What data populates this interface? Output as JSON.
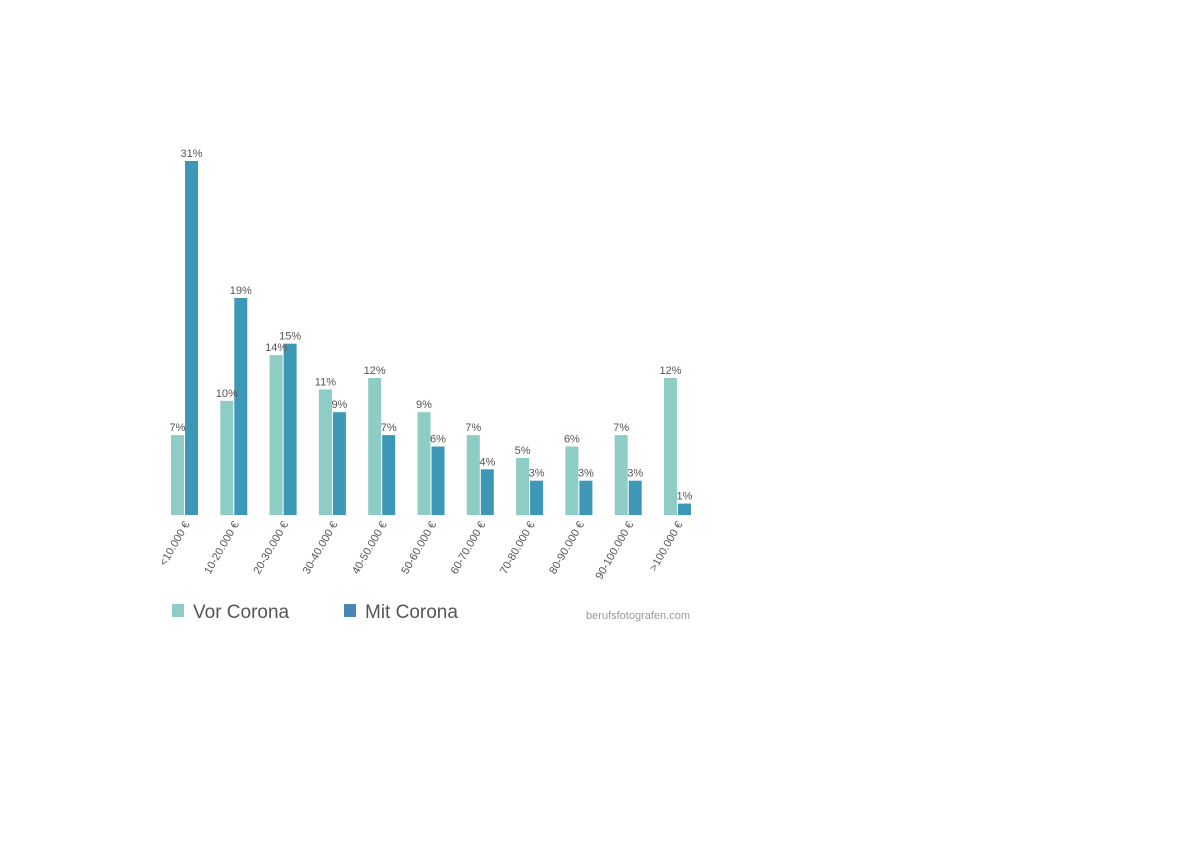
{
  "chart_data": {
    "type": "bar",
    "categories": [
      "<10.000 €",
      "10-20.000 €",
      "20-30.000 €",
      "30-40.000 €",
      "40-50.000 €",
      "50-60.000 €",
      "60-70.000 €",
      "70-80.000 €",
      "80-90.000 €",
      "90-100.000 €",
      ">100.000 €"
    ],
    "series": [
      {
        "name": "Vor Corona",
        "color": "#8ecdc6",
        "values": [
          7,
          10,
          14,
          11,
          12,
          9,
          7,
          5,
          6,
          7,
          12
        ],
        "labels": [
          "7%",
          "10%",
          "14%",
          "11%",
          "12%",
          "9%",
          "7%",
          "5%",
          "6%",
          "7%",
          "12%"
        ]
      },
      {
        "name": "Mit Corona",
        "color": "#3d97b6",
        "values": [
          31,
          19,
          15,
          9,
          7,
          6,
          4,
          3,
          3,
          3,
          1
        ],
        "labels": [
          "31%",
          "19%",
          "15%",
          "9%",
          "7%",
          "6%",
          "4%",
          "3%",
          "3%",
          "3%",
          "1%"
        ]
      }
    ],
    "unit": "%",
    "ylim": [
      0,
      31
    ],
    "grid": false,
    "legend_position": "bottom-left",
    "legend_colors": [
      "#8ecdc6",
      "#4a86b5"
    ]
  },
  "source": "berufsfotografen.com"
}
